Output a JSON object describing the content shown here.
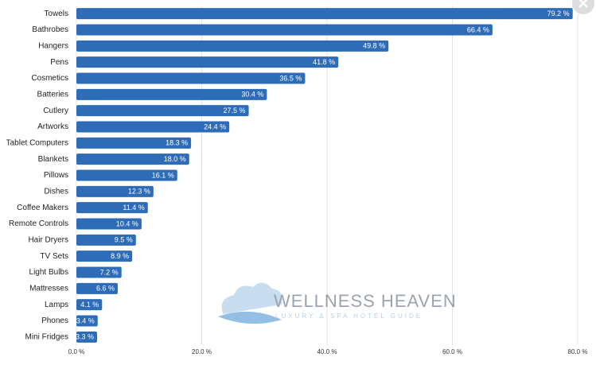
{
  "chart_data": {
    "type": "bar",
    "orientation": "horizontal",
    "categories": [
      "Towels",
      "Bathrobes",
      "Hangers",
      "Pens",
      "Cosmetics",
      "Batteries",
      "Cutlery",
      "Artworks",
      "Tablet Computers",
      "Blankets",
      "Pillows",
      "Dishes",
      "Coffee Makers",
      "Remote Controls",
      "Hair Dryers",
      "TV Sets",
      "Light Bulbs",
      "Mattresses",
      "Lamps",
      "Phones",
      "Mini Fridges"
    ],
    "values": [
      79.2,
      66.4,
      49.8,
      41.8,
      36.5,
      30.4,
      27.5,
      24.4,
      18.3,
      18.0,
      16.1,
      12.3,
      11.4,
      10.4,
      9.5,
      8.9,
      7.2,
      6.6,
      4.1,
      3.4,
      3.3
    ],
    "value_labels": [
      "79.2 %",
      "66.4 %",
      "49.8 %",
      "41.8 %",
      "36.5 %",
      "30.4 %",
      "27.5 %",
      "24.4 %",
      "18.3 %",
      "18.0 %",
      "16.1 %",
      "12.3 %",
      "11.4 %",
      "10.4 %",
      "9.5 %",
      "8.9 %",
      "7.2 %",
      "6.6 %",
      "4.1 %",
      "3.4 %",
      "3.3 %"
    ],
    "color": "#2f6cb7",
    "xlim": [
      0,
      80
    ],
    "xticks": [
      {
        "value": 0,
        "label": "0.0 %"
      },
      {
        "value": 20,
        "label": "20.0 %"
      },
      {
        "value": 40,
        "label": "40.0 %"
      },
      {
        "value": 60,
        "label": "60.0 %"
      },
      {
        "value": 80,
        "label": "80.0 %"
      }
    ],
    "grid": true
  },
  "watermark": {
    "brand": "WELLNESS HEAVEN",
    "tagline": "LUXURY & SPA HOTEL GUIDE"
  }
}
